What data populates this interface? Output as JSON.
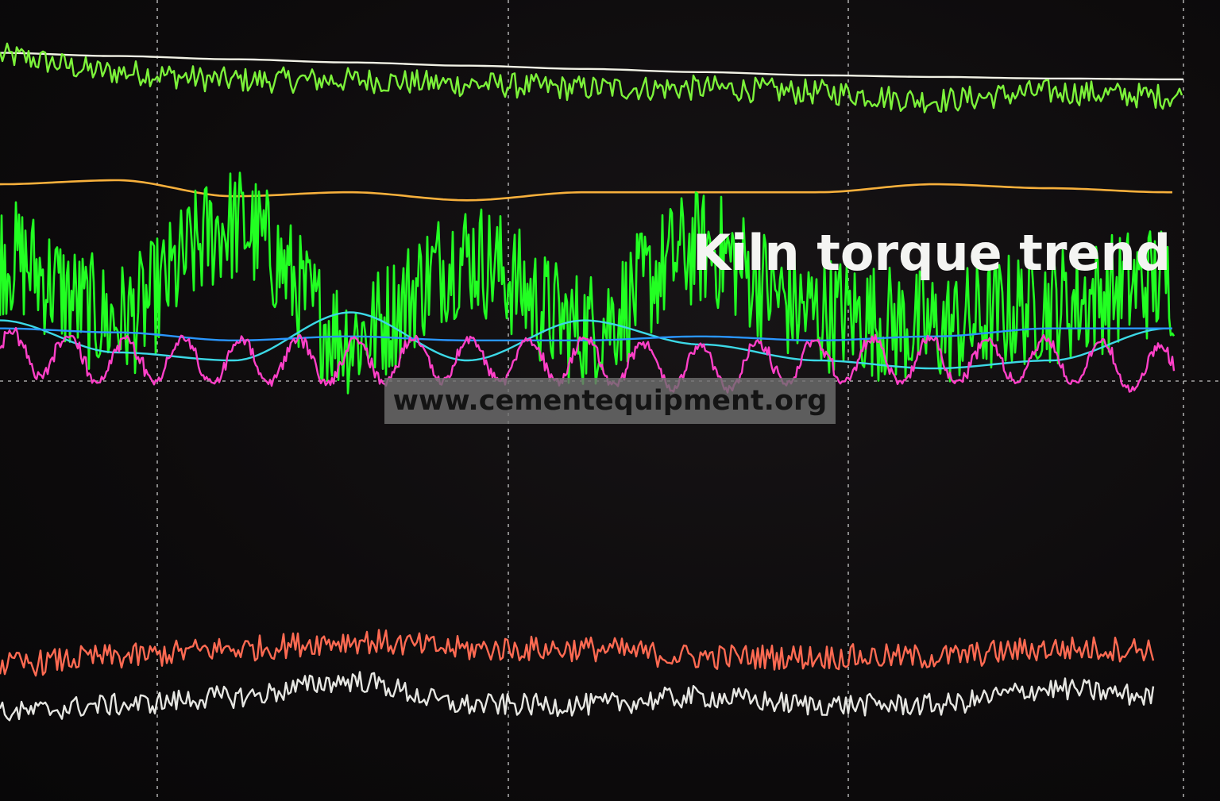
{
  "overlay": {
    "title": "Kiln torque trend",
    "watermark": "www.cementequipment.org"
  },
  "chart_data": {
    "type": "line",
    "title": "Kiln torque trend",
    "xlabel": "",
    "ylabel": "",
    "grid": true,
    "grid_style": "dashed white",
    "legend": "none",
    "x": [
      0,
      10,
      20,
      30,
      40,
      50,
      60,
      70,
      80,
      90,
      100
    ],
    "ylim": [
      0,
      100
    ],
    "series": [
      {
        "color": "#f2f2e6",
        "style": "flat reference line",
        "values": [
          93.4,
          93.0,
          92.6,
          92.2,
          91.8,
          91.4,
          91.0,
          90.6,
          90.4,
          90.2,
          90.1
        ]
      },
      {
        "color": "#7cf23a",
        "style": "noisy",
        "values": [
          93,
          91,
          90,
          90,
          89.5,
          89,
          89,
          88.5,
          87.5,
          88.5,
          88
        ]
      },
      {
        "color": "#f7b03c",
        "style": "smooth",
        "values": [
          77,
          77.5,
          75.5,
          76,
          75,
          76,
          76,
          76,
          77,
          76.5,
          76
        ]
      },
      {
        "color": "#22ff22",
        "style": "thick high-frequency band",
        "values": [
          68,
          60,
          72,
          58,
          68,
          59,
          69,
          61,
          59,
          62,
          65
        ]
      },
      {
        "color": "#3cd8e6",
        "style": "smooth wave",
        "values": [
          60,
          56,
          55,
          61,
          55,
          60,
          57,
          55,
          54,
          55,
          59
        ]
      },
      {
        "color": "#2a96ff",
        "style": "slow drift",
        "values": [
          59,
          58.5,
          57.5,
          58,
          57.5,
          57.5,
          58,
          57.5,
          58,
          59,
          59
        ]
      },
      {
        "color": "#ff40c8",
        "style": "oscillating",
        "values": [
          56,
          55,
          55,
          55,
          55,
          55,
          54,
          55,
          55,
          55,
          54
        ]
      },
      {
        "color": "#ff6a52",
        "style": "noisy",
        "values": [
          17,
          18,
          19,
          20,
          19,
          19,
          18,
          18,
          18,
          19,
          19
        ]
      },
      {
        "color": "#e6e6e2",
        "style": "noisy with spikes",
        "values": [
          11,
          12,
          13,
          15,
          12,
          12,
          13,
          12,
          12,
          14,
          13
        ]
      }
    ]
  }
}
